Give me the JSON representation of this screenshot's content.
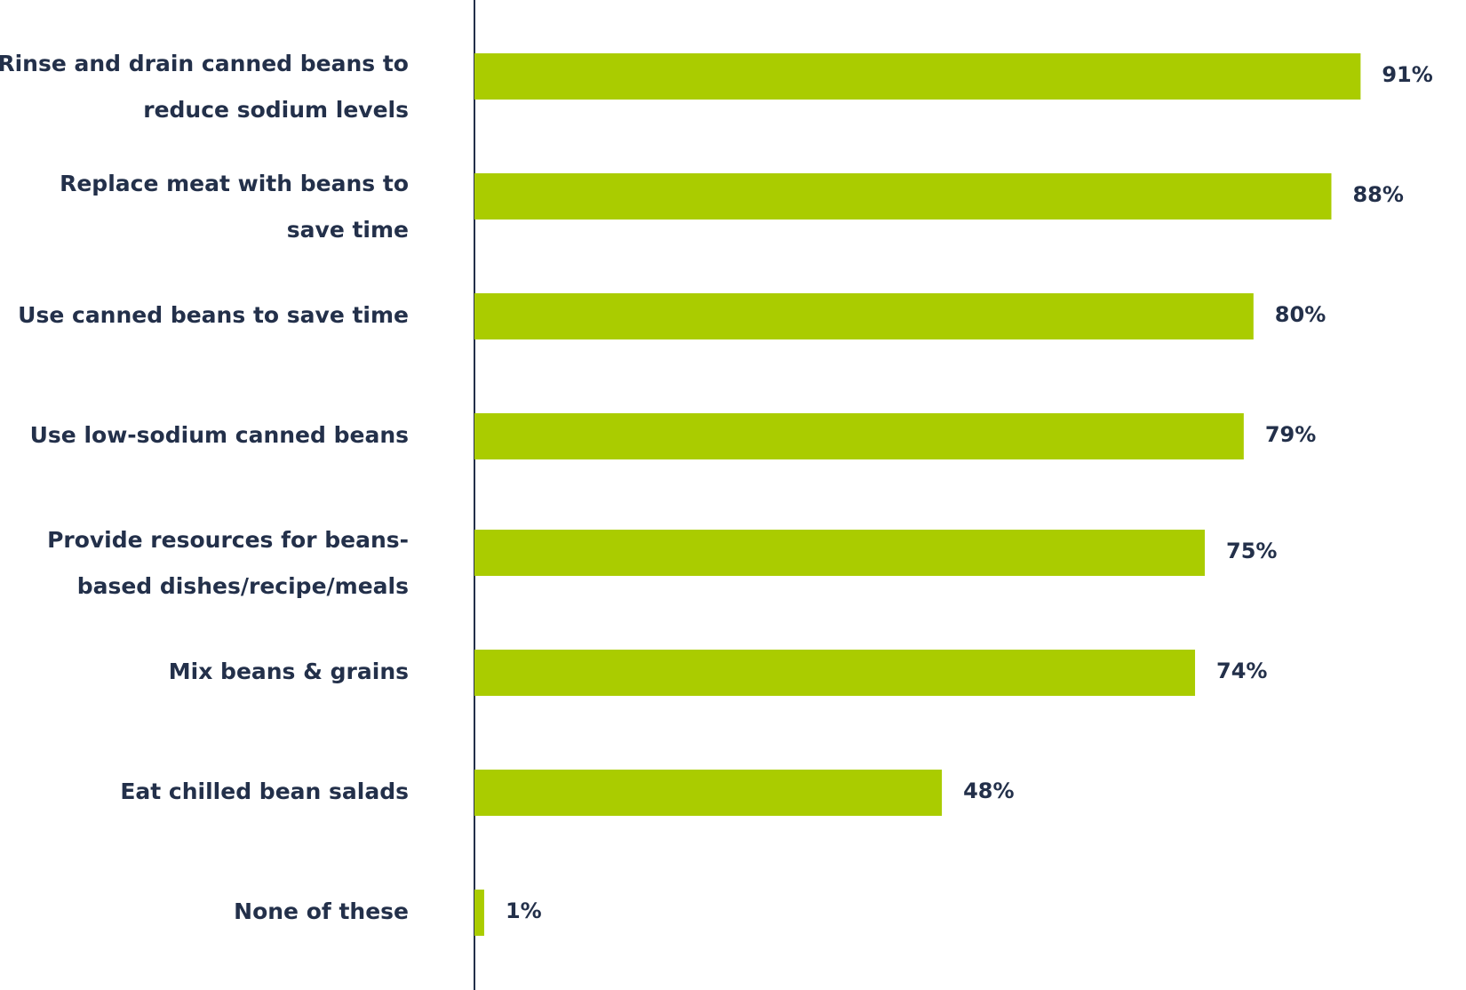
{
  "chart_data": {
    "type": "bar",
    "orientation": "horizontal",
    "title": "",
    "xlabel": "",
    "ylabel": "",
    "categories": [
      [
        "Rinse and drain canned beans to",
        "reduce sodium levels"
      ],
      [
        "Replace meat with beans to",
        "save time"
      ],
      [
        "Use canned beans to save time"
      ],
      [
        "Use low-sodium canned beans"
      ],
      [
        "Provide resources for beans-",
        "based dishes/recipe/meals"
      ],
      [
        "Mix beans & grains"
      ],
      [
        "Eat chilled bean salads"
      ],
      [
        "None of these"
      ]
    ],
    "values": [
      91,
      88,
      80,
      79,
      75,
      74,
      48,
      1
    ],
    "value_labels": [
      "91%",
      "88%",
      "80%",
      "79%",
      "75%",
      "74%",
      "48%",
      "1%"
    ],
    "xlim": [
      0,
      100
    ],
    "grid": false,
    "legend": "none",
    "colors": {
      "bar": "#aacc00",
      "text": "#23304a",
      "axis": "#23304a"
    }
  }
}
